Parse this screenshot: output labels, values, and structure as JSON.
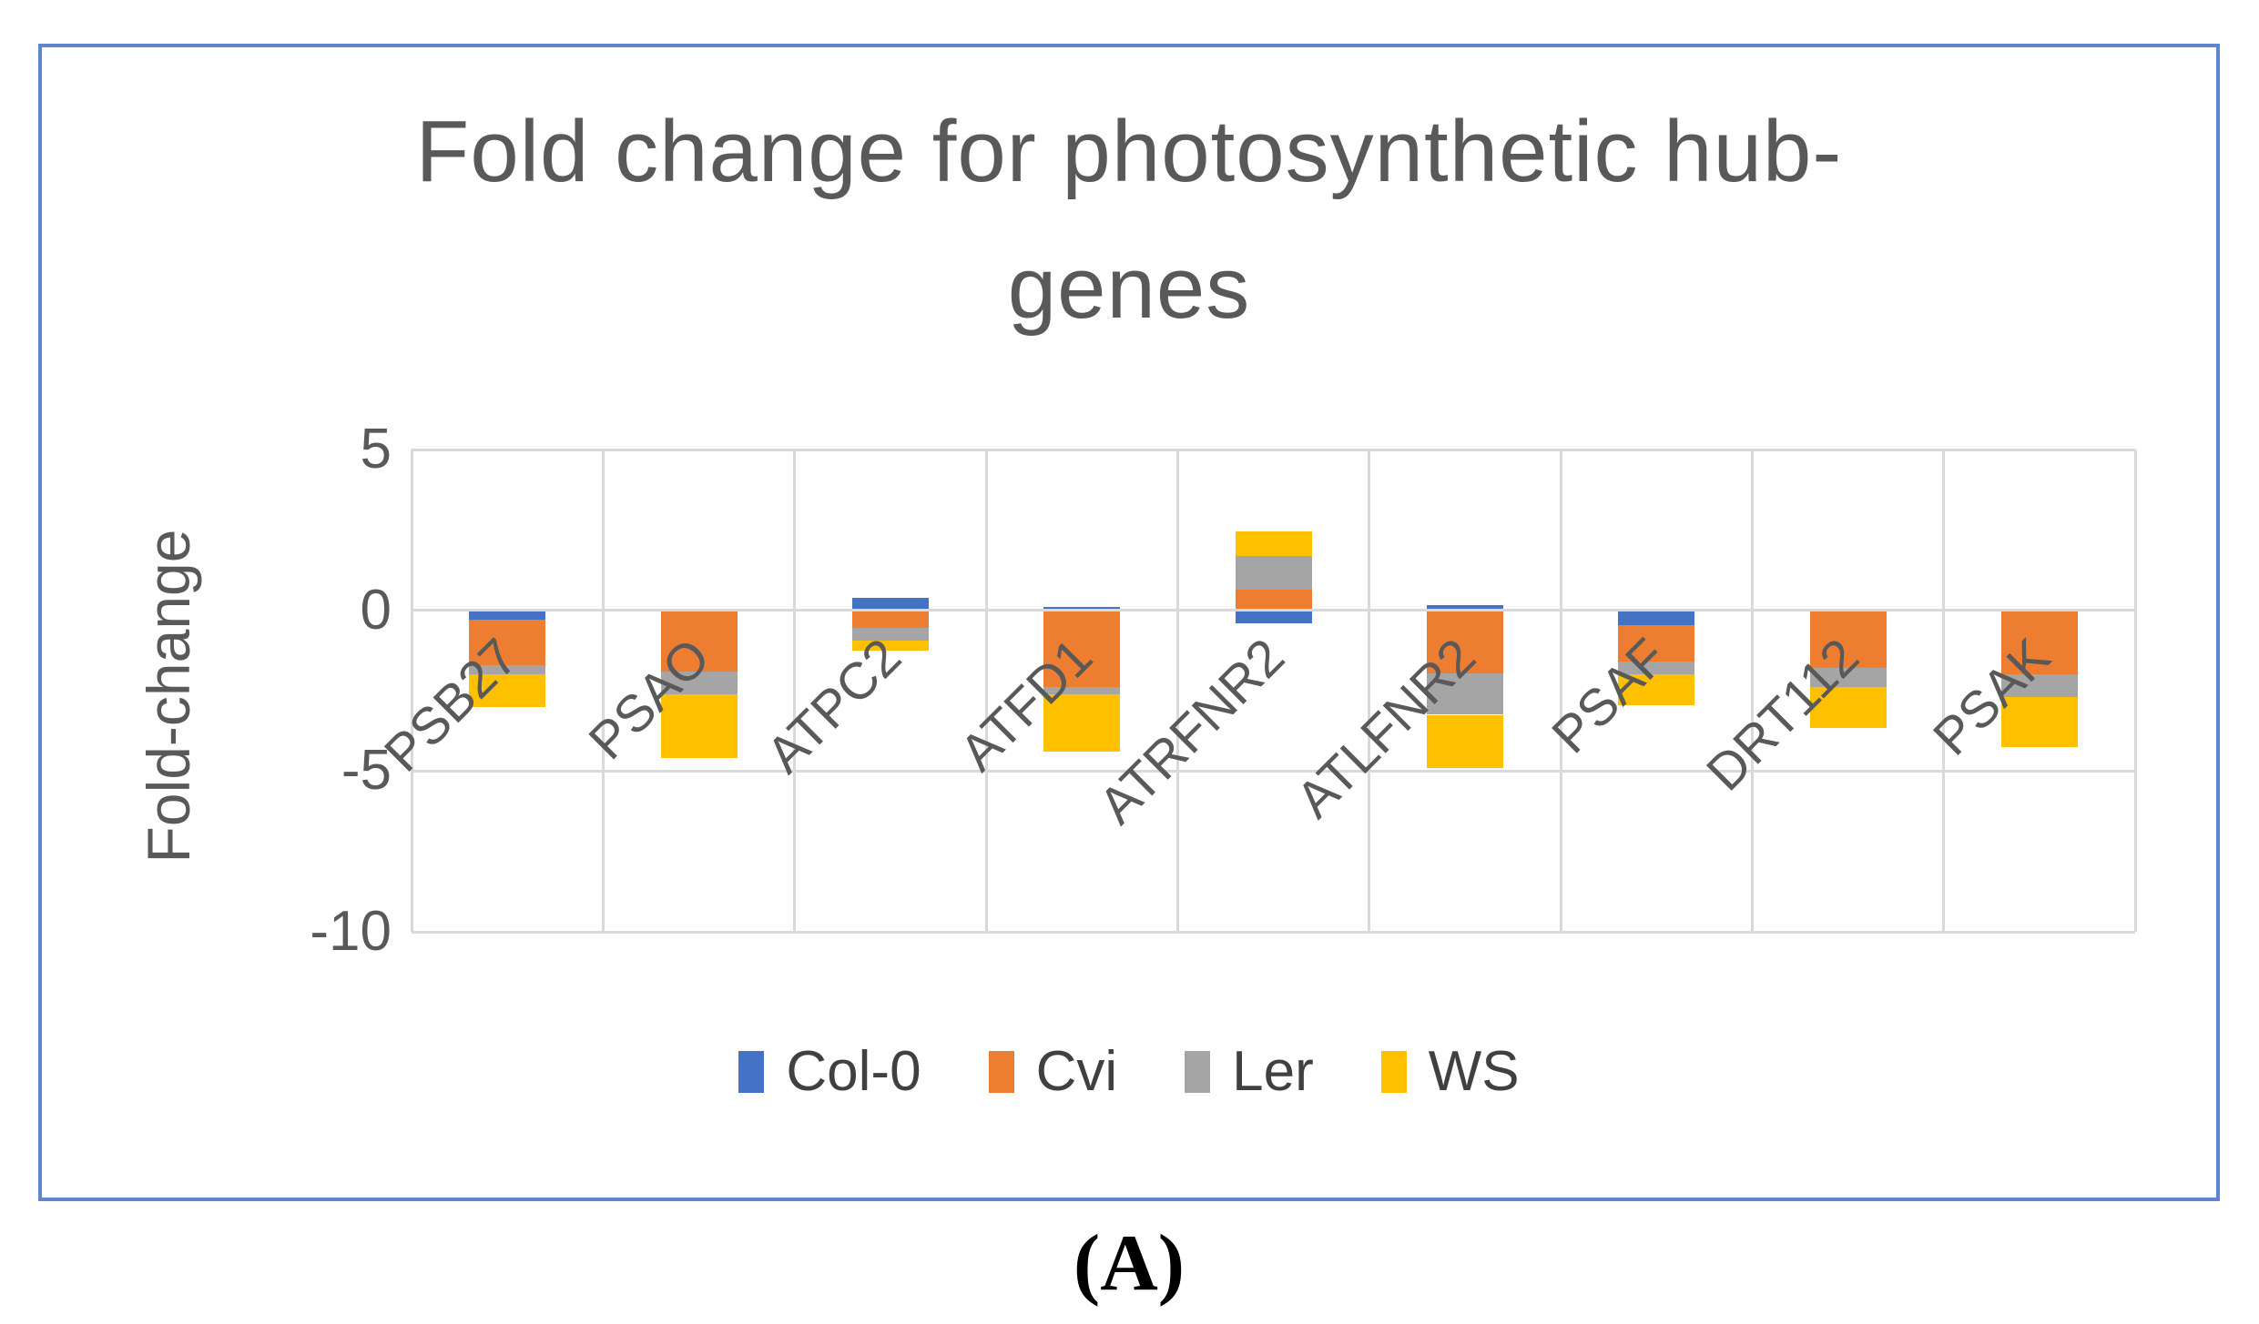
{
  "figure": {
    "title_line1": "Fold change for photosynthetic hub-",
    "title_line2": "genes",
    "caption": "(A)"
  },
  "colors": {
    "figure_border": "#5E86CC",
    "gridline": "#D9D9D9",
    "title_text": "#595959",
    "axis_text": "#595959",
    "legend_text": "#404040"
  },
  "chart_data": {
    "type": "bar",
    "stacked": true,
    "title": "Fold change for photosynthetic hub-genes",
    "xlabel": "",
    "ylabel": "Fold-change",
    "ylim": [
      -10,
      5
    ],
    "yticks": [
      5,
      0,
      -5,
      -10
    ],
    "grid": true,
    "legend_position": "bottom",
    "categories": [
      "PSB27",
      "PSAO",
      "ATPC2",
      "ATFD1",
      "ATRFNR2",
      "ATLFNR2",
      "PSAF",
      "DRT112",
      "PSAK"
    ],
    "series": [
      {
        "name": "Col-0",
        "color": "#4472C4",
        "values": [
          -0.3,
          0,
          0.4,
          0.1,
          -0.4,
          0.15,
          -0.45,
          0,
          0
        ]
      },
      {
        "name": "Cvi",
        "color": "#ED7D31",
        "values": [
          -1.4,
          -1.9,
          -0.55,
          -2.4,
          0.65,
          -1.95,
          -1.15,
          -1.8,
          -2.0
        ]
      },
      {
        "name": "Ler",
        "color": "#A5A5A5",
        "values": [
          -0.3,
          -0.7,
          -0.4,
          -0.2,
          1.05,
          -1.3,
          -0.4,
          -0.6,
          -0.7
        ]
      },
      {
        "name": "WS",
        "color": "#FFC000",
        "values": [
          -1.0,
          -2.0,
          -0.3,
          -1.8,
          0.75,
          -1.65,
          -0.95,
          -1.25,
          -1.55
        ]
      }
    ]
  }
}
